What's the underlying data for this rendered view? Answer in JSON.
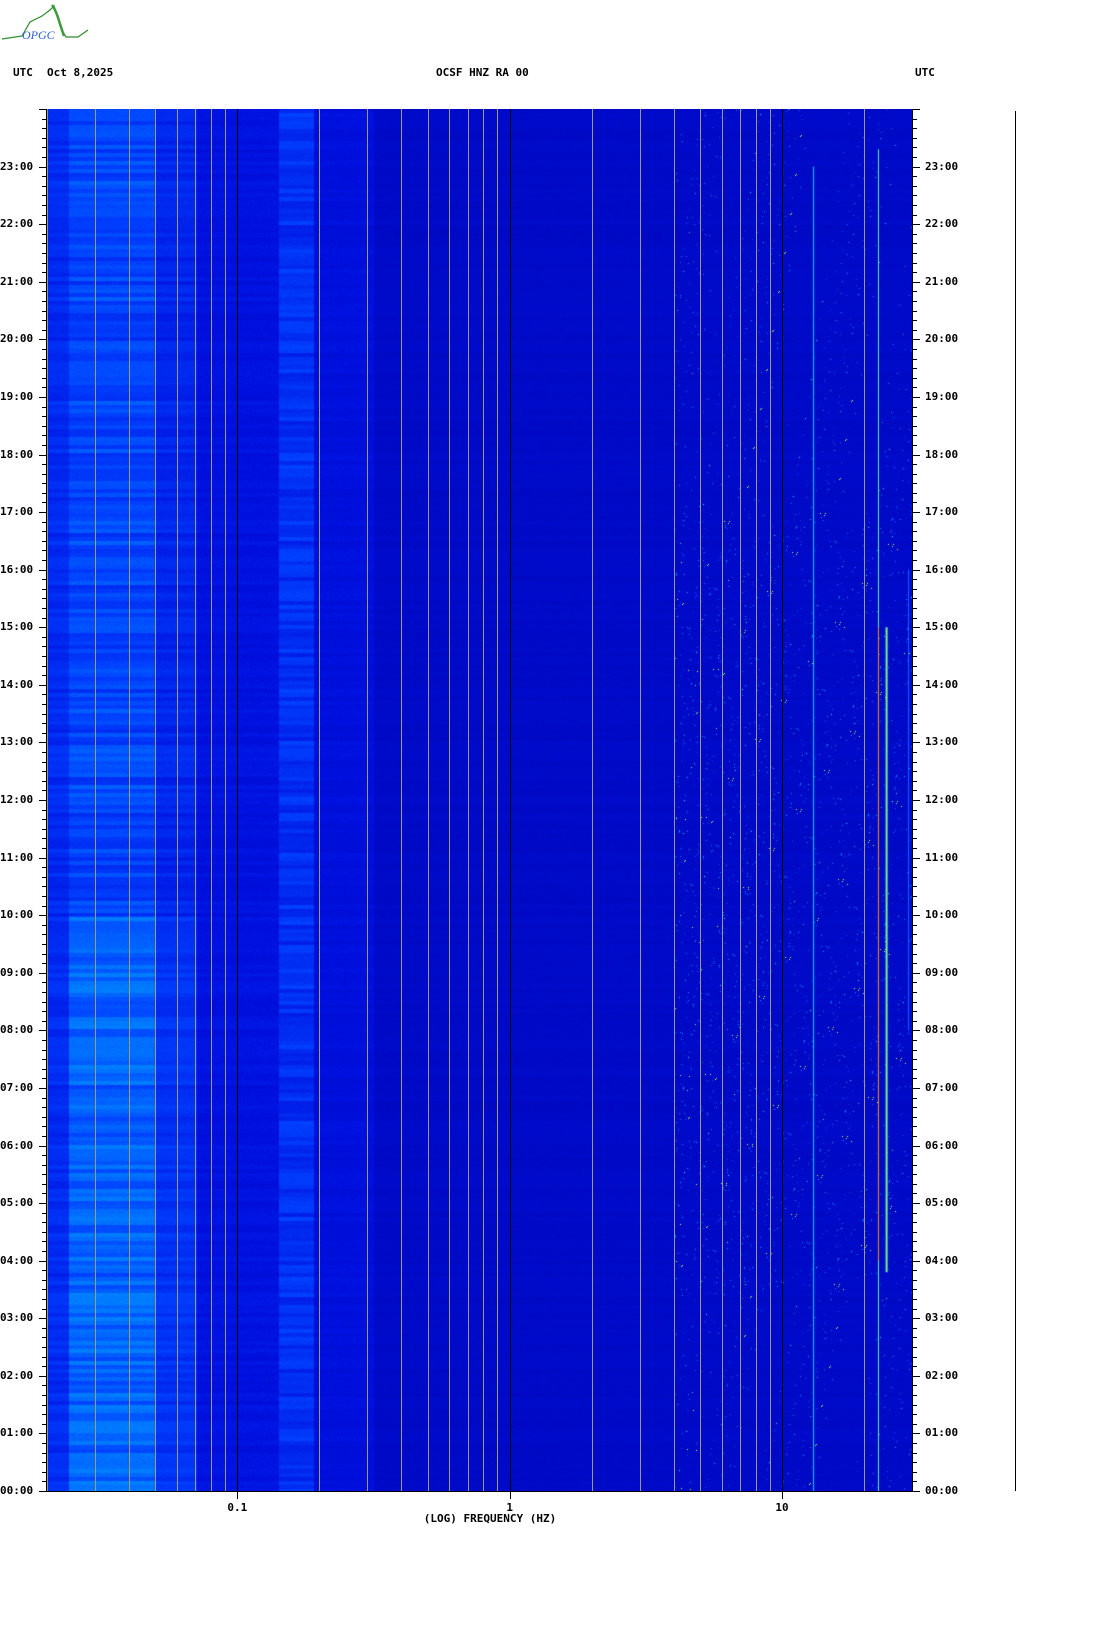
{
  "logo": {
    "text": "OPGC"
  },
  "header": {
    "left_tz": "UTC",
    "date": "Oct 8,2025",
    "station": "OCSF HNZ RA 00",
    "right_tz": "UTC"
  },
  "chart_data": {
    "type": "heatmap",
    "title": "OCSF HNZ RA 00",
    "xlabel": "(LOG) FREQUENCY (HZ)",
    "x_scale": "log",
    "xlim": [
      0.02,
      30
    ],
    "x_tick_labels": [
      "0.1",
      "1",
      "10"
    ],
    "x_ticks": [
      0.1,
      1,
      10
    ],
    "ylim_hours": [
      0,
      24
    ],
    "y_tick_labels": [
      "00:00",
      "01:00",
      "02:00",
      "03:00",
      "04:00",
      "05:00",
      "06:00",
      "07:00",
      "08:00",
      "09:00",
      "10:00",
      "11:00",
      "12:00",
      "13:00",
      "14:00",
      "15:00",
      "16:00",
      "17:00",
      "18:00",
      "19:00",
      "20:00",
      "21:00",
      "22:00",
      "23:00"
    ],
    "y_minor_tick_minutes": 10,
    "grid": true,
    "colormap": [
      "#0000a0",
      "#0010e0",
      "#0040ff",
      "#0090ff",
      "#00e0ff",
      "#a0ff60",
      "#ffff00",
      "#ff0000"
    ],
    "colors": {
      "major_grid": "#000000",
      "minor_grid": "#9a9a80"
    }
  }
}
